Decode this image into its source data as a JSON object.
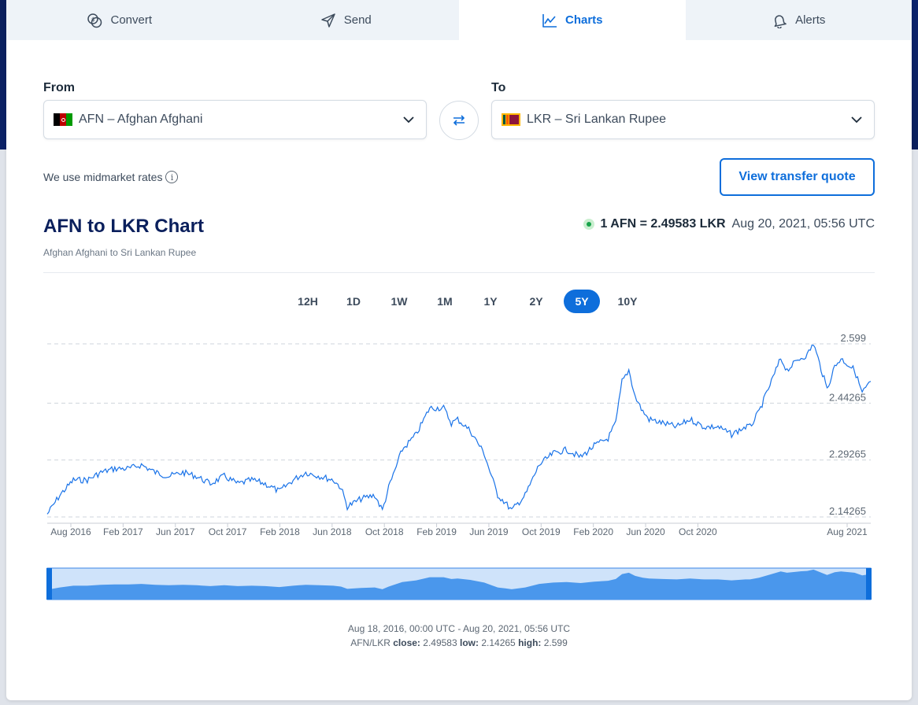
{
  "tabs": [
    {
      "label": "Convert",
      "icon": "coins-icon"
    },
    {
      "label": "Send",
      "icon": "send-icon"
    },
    {
      "label": "Charts",
      "icon": "chart-icon",
      "active": true
    },
    {
      "label": "Alerts",
      "icon": "bell-icon"
    }
  ],
  "from": {
    "label": "From",
    "code": "AFN",
    "name": "Afghan Afghani",
    "display": "AFN – Afghan Afghani"
  },
  "to": {
    "label": "To",
    "code": "LKR",
    "name": "Sri Lankan Rupee",
    "display": "LKR – Sri Lankan Rupee"
  },
  "midmarket_text": "We use midmarket rates",
  "quote_button": "View transfer quote",
  "chart_title": "AFN to LKR Chart",
  "chart_subtitle": "Afghan Afghani to Sri Lankan Rupee",
  "rate": {
    "value": "1 AFN = 2.49583 LKR",
    "time": "Aug 20, 2021, 05:56 UTC"
  },
  "ranges": [
    "12H",
    "1D",
    "1W",
    "1M",
    "1Y",
    "2Y",
    "5Y",
    "10Y"
  ],
  "active_range": "5Y",
  "footer": {
    "period": "Aug 18, 2016, 00:00 UTC - Aug 20, 2021, 05:56 UTC",
    "pair": "AFN/LKR",
    "close_label": "close:",
    "close": "2.49583",
    "low_label": "low:",
    "low": "2.14265",
    "high_label": "high:",
    "high": "2.599"
  },
  "colors": {
    "accent": "#0e6edb",
    "line": "#1a73e8",
    "navigator_fill": "#4a97ec"
  },
  "chart_data": {
    "type": "line",
    "title": "",
    "xlabel": "",
    "ylabel": "",
    "ylim": [
      2.14265,
      2.599
    ],
    "yticks": [
      "2.599",
      "2.44265",
      "2.29265",
      "2.14265"
    ],
    "xticks": [
      "Aug 2016",
      "Feb 2017",
      "Jun 2017",
      "Oct 2017",
      "Feb 2018",
      "Jun 2018",
      "Oct 2018",
      "Feb 2019",
      "Jun 2019",
      "Oct 2019",
      "Feb 2020",
      "Jun 2020",
      "Oct 2020",
      "Aug 2021"
    ],
    "grid": true,
    "series": [
      {
        "x": [
          "2016-08-18",
          "2016-09-15",
          "2016-10-15",
          "2016-11-15",
          "2016-12-15",
          "2017-01-15",
          "2017-02-15",
          "2017-03-15",
          "2017-04-15",
          "2017-05-15",
          "2017-06-15",
          "2017-07-15",
          "2017-08-15",
          "2017-09-15",
          "2017-10-15",
          "2017-11-15",
          "2017-12-15",
          "2018-01-15",
          "2018-02-15",
          "2018-03-15",
          "2018-04-15",
          "2018-05-15",
          "2018-06-01",
          "2018-06-15",
          "2018-07-15",
          "2018-08-15",
          "2018-09-01",
          "2018-09-15",
          "2018-10-15",
          "2018-11-15",
          "2018-12-15",
          "2019-01-15",
          "2019-02-01",
          "2019-02-15",
          "2019-03-15",
          "2019-04-15",
          "2019-05-01",
          "2019-05-15",
          "2019-06-01",
          "2019-06-15",
          "2019-07-15",
          "2019-08-15",
          "2019-09-15",
          "2019-10-15",
          "2019-11-15",
          "2019-12-15",
          "2020-01-15",
          "2020-02-01",
          "2020-02-15",
          "2020-03-01",
          "2020-03-15",
          "2020-04-01",
          "2020-04-15",
          "2020-05-15",
          "2020-06-15",
          "2020-07-15",
          "2020-08-15",
          "2020-09-15",
          "2020-10-15",
          "2020-11-15",
          "2020-11-25",
          "2020-12-15",
          "2021-01-15",
          "2021-02-01",
          "2021-02-15",
          "2021-03-15",
          "2021-04-01",
          "2021-04-15",
          "2021-05-15",
          "2021-06-01",
          "2021-06-15",
          "2021-07-15",
          "2021-08-01",
          "2021-08-20"
        ],
        "values": [
          2.15,
          2.2,
          2.24,
          2.24,
          2.26,
          2.27,
          2.27,
          2.28,
          2.26,
          2.25,
          2.26,
          2.25,
          2.23,
          2.25,
          2.23,
          2.24,
          2.23,
          2.21,
          2.24,
          2.26,
          2.25,
          2.24,
          2.22,
          2.17,
          2.19,
          2.2,
          2.16,
          2.22,
          2.32,
          2.36,
          2.43,
          2.43,
          2.39,
          2.4,
          2.37,
          2.31,
          2.25,
          2.2,
          2.18,
          2.16,
          2.2,
          2.28,
          2.31,
          2.32,
          2.3,
          2.33,
          2.35,
          2.39,
          2.5,
          2.53,
          2.46,
          2.42,
          2.4,
          2.39,
          2.38,
          2.4,
          2.38,
          2.38,
          2.36,
          2.38,
          2.38,
          2.42,
          2.51,
          2.56,
          2.53,
          2.56,
          2.57,
          2.6,
          2.48,
          2.54,
          2.56,
          2.53,
          2.47,
          2.5
        ]
      }
    ]
  }
}
